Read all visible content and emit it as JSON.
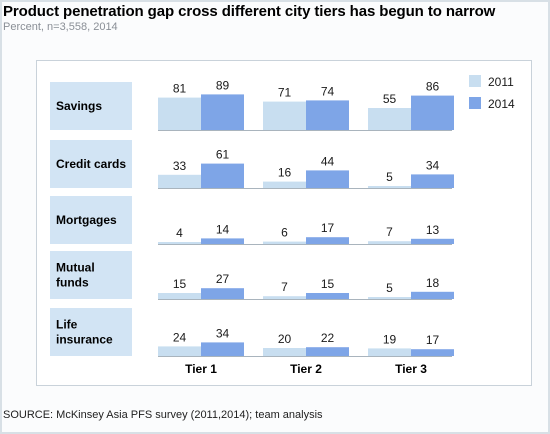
{
  "title": "Product penetration gap cross different city tiers has begun to narrow",
  "subtitle": "Percent, n=3,558, 2014",
  "source": "SOURCE: McKinsey Asia PFS survey (2011,2014); team analysis",
  "colors": {
    "y2011": "#c8def0",
    "y2014": "#7ea5e7",
    "label_box": "#d2e4f4"
  },
  "chart_data": {
    "type": "bar",
    "title": "Product penetration gap cross different city tiers has begun to narrow",
    "subtitle": "Percent, n=3,558, 2014",
    "groups": [
      "Tier 1",
      "Tier 2",
      "Tier 3"
    ],
    "series": [
      {
        "name": "2011",
        "color": "#c8def0"
      },
      {
        "name": "2014",
        "color": "#7ea5e7"
      }
    ],
    "legend_position": "top-right",
    "rows": [
      {
        "label": [
          "Savings"
        ],
        "values": [
          [
            81,
            89
          ],
          [
            71,
            74
          ],
          [
            55,
            86
          ]
        ]
      },
      {
        "label": [
          "Credit cards"
        ],
        "values": [
          [
            33,
            61
          ],
          [
            16,
            44
          ],
          [
            5,
            34
          ]
        ]
      },
      {
        "label": [
          "Mortgages"
        ],
        "values": [
          [
            4,
            14
          ],
          [
            6,
            17
          ],
          [
            7,
            13
          ]
        ]
      },
      {
        "label": [
          "Mutual",
          "funds"
        ],
        "values": [
          [
            15,
            27
          ],
          [
            7,
            15
          ],
          [
            5,
            18
          ]
        ]
      },
      {
        "label": [
          "Life",
          "insurance"
        ],
        "values": [
          [
            24,
            34
          ],
          [
            20,
            22
          ],
          [
            19,
            17
          ]
        ]
      }
    ],
    "ylim": [
      0,
      100
    ]
  }
}
